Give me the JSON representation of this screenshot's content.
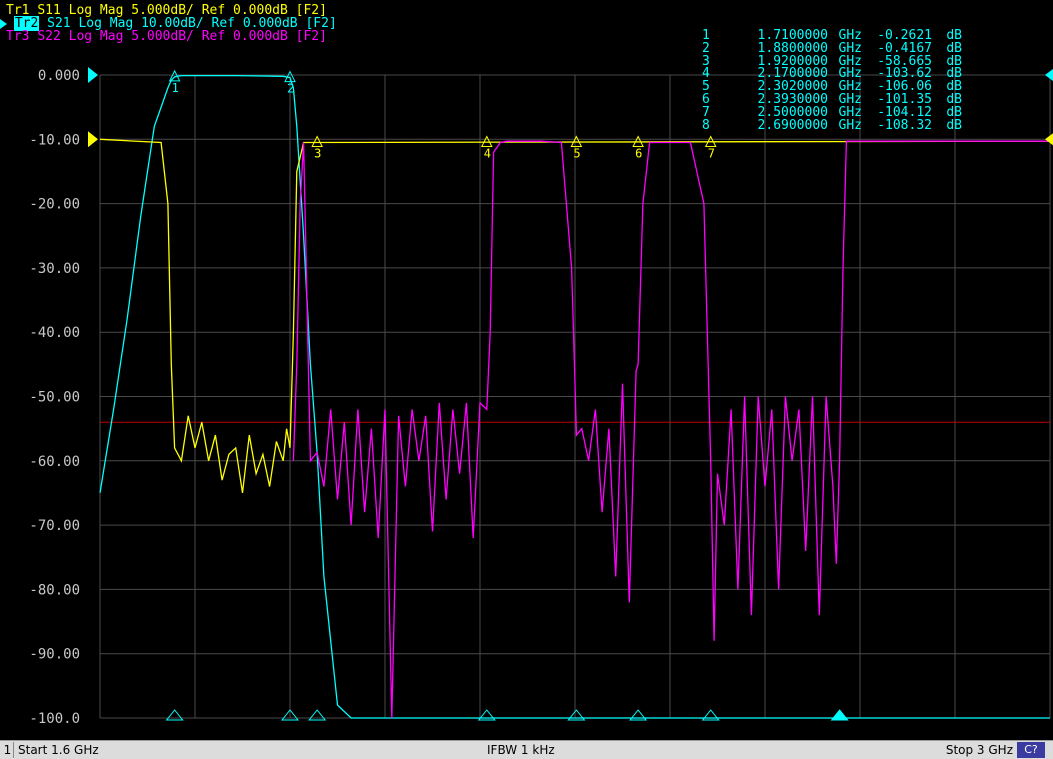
{
  "traces": {
    "tr1": {
      "label": "Tr1",
      "param": "S11",
      "format": "Log Mag",
      "scale": "5.000dB/",
      "ref_label": "Ref",
      "ref": "0.000dB",
      "mode": "[F2]",
      "color": "#ffff00"
    },
    "tr2": {
      "label": "Tr2",
      "param": "S21",
      "format": "Log Mag",
      "scale": "10.00dB/",
      "ref_label": "Ref",
      "ref": "0.000dB",
      "mode": "[F2]",
      "color": "#00ffff"
    },
    "tr3": {
      "label": "Tr3",
      "param": "S22",
      "format": "Log Mag",
      "scale": "5.000dB/",
      "ref_label": "Ref",
      "ref": "0.000dB",
      "mode": "[F2]",
      "color": "#ff00ff"
    }
  },
  "markers": [
    {
      "num": "1",
      "freq": "1.7100000",
      "unit": "GHz",
      "value": "-0.2621",
      "vunit": "dB"
    },
    {
      "num": "2",
      "freq": "1.8800000",
      "unit": "GHz",
      "value": "-0.4167",
      "vunit": "dB"
    },
    {
      "num": "3",
      "freq": "1.9200000",
      "unit": "GHz",
      "value": "-58.665",
      "vunit": "dB"
    },
    {
      "num": "4",
      "freq": "2.1700000",
      "unit": "GHz",
      "value": "-103.62",
      "vunit": "dB"
    },
    {
      "num": "5",
      "freq": "2.3020000",
      "unit": "GHz",
      "value": "-106.06",
      "vunit": "dB"
    },
    {
      "num": "6",
      "freq": "2.3930000",
      "unit": "GHz",
      "value": "-101.35",
      "vunit": "dB"
    },
    {
      "num": "7",
      "freq": "2.5000000",
      "unit": "GHz",
      "value": "-104.12",
      "vunit": "dB"
    },
    {
      "num": "8",
      "freq": "2.6900000",
      "unit": "GHz",
      "value": "-108.32",
      "vunit": "dB"
    }
  ],
  "status": {
    "channel": "1",
    "start": "Start 1.6 GHz",
    "ifbw": "IFBW 1 kHz",
    "stop": "Stop 3 GHz",
    "cal": "C?"
  },
  "chart_data": {
    "type": "line",
    "x_unit": "GHz",
    "xlim": [
      1.6,
      3.0
    ],
    "ylim": [
      -100,
      0
    ],
    "y_ticks": [
      "0.000",
      "-10.00",
      "-20.00",
      "-30.00",
      "-40.00",
      "-50.00",
      "-60.00",
      "-70.00",
      "-80.00",
      "-90.00",
      "-100.0"
    ],
    "grid": true,
    "limit_line_db": -54,
    "series": [
      {
        "name": "S21",
        "color": "#00ffff",
        "x": [
          1.6,
          1.62,
          1.64,
          1.66,
          1.68,
          1.7,
          1.705,
          1.71,
          1.72,
          1.8,
          1.87,
          1.88,
          1.885,
          1.89,
          1.9,
          1.91,
          1.92,
          1.93,
          1.95,
          1.97,
          3.0
        ],
        "y": [
          -65,
          -52,
          -38,
          -22,
          -8,
          -2,
          -0.8,
          -0.3,
          -0.1,
          -0.1,
          -0.2,
          -0.4,
          -2,
          -8,
          -25,
          -45,
          -58.7,
          -78,
          -98,
          -100,
          -100
        ]
      },
      {
        "name": "S11",
        "color": "#ffff00",
        "x": [
          1.6,
          1.69,
          1.7,
          1.705,
          1.71,
          1.72,
          1.73,
          1.74,
          1.75,
          1.76,
          1.77,
          1.78,
          1.79,
          1.8,
          1.81,
          1.82,
          1.83,
          1.84,
          1.85,
          1.86,
          1.87,
          1.875,
          1.88,
          1.885,
          1.89,
          1.9,
          3.0
        ],
        "y": [
          -10,
          -10.5,
          -20,
          -45,
          -58,
          -60,
          -53,
          -58,
          -54,
          -60,
          -56,
          -63,
          -59,
          -58,
          -65,
          -56,
          -62,
          -59,
          -64,
          -57,
          -60,
          -55,
          -58,
          -40,
          -15,
          -10.5,
          -10.3
        ]
      },
      {
        "name": "S22",
        "color": "#ff00ff",
        "x": [
          1.885,
          1.89,
          1.895,
          1.9,
          1.91,
          1.92,
          1.93,
          1.94,
          1.95,
          1.96,
          1.97,
          1.98,
          1.99,
          2.0,
          2.01,
          2.02,
          2.03,
          2.04,
          2.05,
          2.06,
          2.07,
          2.08,
          2.09,
          2.1,
          2.11,
          2.12,
          2.13,
          2.14,
          2.15,
          2.16,
          2.17,
          2.175,
          2.18,
          2.19,
          2.2,
          2.25,
          2.28,
          2.295,
          2.3,
          2.302,
          2.31,
          2.32,
          2.33,
          2.34,
          2.35,
          2.36,
          2.37,
          2.38,
          2.39,
          2.393,
          2.4,
          2.41,
          2.47,
          2.49,
          2.5,
          2.505,
          2.51,
          2.52,
          2.53,
          2.54,
          2.55,
          2.56,
          2.57,
          2.58,
          2.59,
          2.6,
          2.61,
          2.62,
          2.63,
          2.64,
          2.65,
          2.66,
          2.67,
          2.68,
          2.685,
          2.69,
          2.695,
          2.7,
          2.71,
          3.0
        ],
        "y": [
          -60,
          -45,
          -20,
          -10.5,
          -60,
          -58.7,
          -64,
          -52,
          -66,
          -54,
          -70,
          -52,
          -68,
          -55,
          -72,
          -52,
          -100,
          -53,
          -64,
          -52,
          -60,
          -53,
          -71,
          -51,
          -66,
          -52,
          -62,
          -51,
          -72,
          -51,
          -52,
          -40,
          -12,
          -10.5,
          -10.3,
          -10.3,
          -10.5,
          -30,
          -48,
          -56,
          -55,
          -60,
          -52,
          -68,
          -55,
          -78,
          -48,
          -82,
          -46,
          -45,
          -20,
          -10.5,
          -10.5,
          -20,
          -60,
          -88,
          -62,
          -70,
          -52,
          -80,
          -50,
          -84,
          -50,
          -64,
          -52,
          -80,
          -50,
          -60,
          -52,
          -74,
          -50,
          -84,
          -50,
          -64,
          -76,
          -60,
          -30,
          -10.3,
          -10.3,
          -10.3
        ]
      }
    ]
  }
}
